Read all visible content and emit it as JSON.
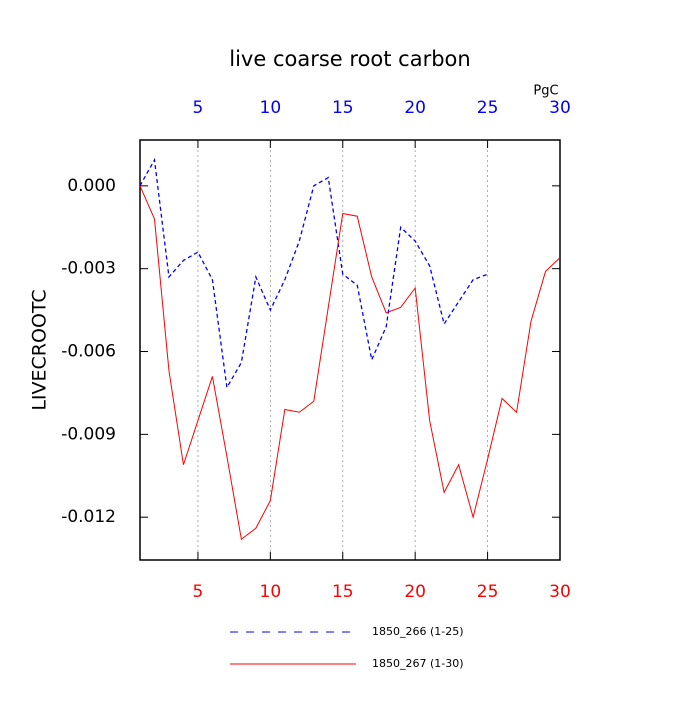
{
  "chart_data": {
    "type": "line",
    "title": "live coarse root carbon",
    "y_label": "LIVECROOTC",
    "top_axis_label": "PgC",
    "xlim": [
      1,
      30
    ],
    "xticks": [
      5,
      10,
      15,
      20,
      25,
      30
    ],
    "ylim": [
      -0.01355,
      0.00166
    ],
    "yticks": [
      {
        "value": 0,
        "label": "0.000"
      },
      {
        "value": -0.003,
        "label": "-0.003"
      },
      {
        "value": -0.006,
        "label": "-0.006"
      },
      {
        "value": -0.009,
        "label": "-0.009"
      },
      {
        "value": -0.012,
        "label": "-0.012"
      }
    ],
    "grid": true,
    "series": [
      {
        "name": "1850_266 (1-25)",
        "color": "#0000ff",
        "dash": true,
        "x": [
          1,
          2,
          3,
          4,
          5,
          6,
          7,
          8,
          9,
          10,
          11,
          12,
          13,
          14,
          15,
          16,
          17,
          18,
          19,
          20,
          21,
          22,
          23,
          24,
          25
        ],
        "values": [
          0.0,
          0.00094,
          -0.0033,
          -0.0027,
          -0.0024,
          -0.0034,
          -0.0073,
          -0.0064,
          -0.0033,
          -0.0045,
          -0.0034,
          -0.002,
          0.0,
          0.0003,
          -0.0032,
          -0.0036,
          -0.0063,
          -0.0051,
          -0.0015,
          -0.002,
          -0.0029,
          -0.005,
          -0.0042,
          -0.0034,
          -0.0032
        ]
      },
      {
        "name": "1850_267 (1-30)",
        "color": "#ff0000",
        "dash": false,
        "x": [
          1,
          2,
          3,
          4,
          5,
          6,
          7,
          8,
          9,
          10,
          11,
          12,
          13,
          14,
          15,
          16,
          17,
          18,
          19,
          20,
          21,
          22,
          23,
          24,
          25,
          26,
          27,
          28,
          29,
          30
        ],
        "values": [
          0.0,
          -0.0012,
          -0.0067,
          -0.0101,
          -0.0085,
          -0.0069,
          -0.0098,
          -0.0128,
          -0.0124,
          -0.0114,
          -0.0081,
          -0.0082,
          -0.0078,
          -0.0044,
          -0.001,
          -0.0011,
          -0.0033,
          -0.0046,
          -0.0044,
          -0.0037,
          -0.0085,
          -0.0111,
          -0.0101,
          -0.012,
          -0.0099,
          -0.0077,
          -0.0082,
          -0.0049,
          -0.0031,
          -0.0026
        ]
      }
    ]
  }
}
